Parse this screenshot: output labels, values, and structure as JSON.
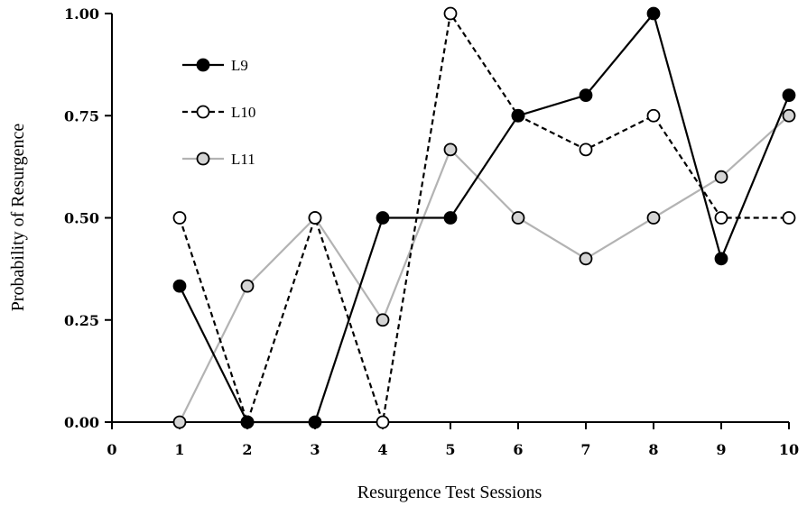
{
  "chart_data": {
    "type": "line",
    "title": "",
    "xlabel": "Resurgence Test Sessions",
    "ylabel": "Probability of Resurgence",
    "xlim": [
      0,
      10
    ],
    "ylim": [
      0,
      1
    ],
    "x_ticks": [
      "0",
      "1",
      "2",
      "3",
      "4",
      "5",
      "6",
      "7",
      "8",
      "9",
      "10"
    ],
    "y_ticks": [
      "0.00",
      "0.25",
      "0.50",
      "0.75",
      "1.00"
    ],
    "grid": false,
    "legend_position": "top-left",
    "series": [
      {
        "name": "L9",
        "line_color": "#000000",
        "line_style": "solid",
        "marker_fill": "#000000",
        "marker_stroke": "#000000",
        "x": [
          1,
          2,
          3,
          4,
          5,
          6,
          7,
          8,
          9,
          10
        ],
        "y": [
          0.333,
          0.0,
          0.0,
          0.5,
          0.5,
          0.75,
          0.8,
          1.0,
          0.4,
          0.8
        ]
      },
      {
        "name": "L10",
        "line_color": "#000000",
        "line_style": "dashed",
        "marker_fill": "#ffffff",
        "marker_stroke": "#000000",
        "x": [
          1,
          2,
          3,
          4,
          5,
          6,
          7,
          8,
          9,
          10
        ],
        "y": [
          0.5,
          0.0,
          0.5,
          0.0,
          1.0,
          0.75,
          0.667,
          0.75,
          0.5,
          0.5
        ]
      },
      {
        "name": "L11",
        "line_color": "#b3b3b3",
        "line_style": "solid",
        "marker_fill": "#d4d4d4",
        "marker_stroke": "#000000",
        "x": [
          1,
          2,
          3,
          4,
          5,
          6,
          7,
          8,
          9,
          10
        ],
        "y": [
          0.0,
          0.333,
          0.5,
          0.25,
          0.667,
          0.5,
          0.4,
          0.5,
          0.6,
          0.75
        ]
      }
    ]
  }
}
